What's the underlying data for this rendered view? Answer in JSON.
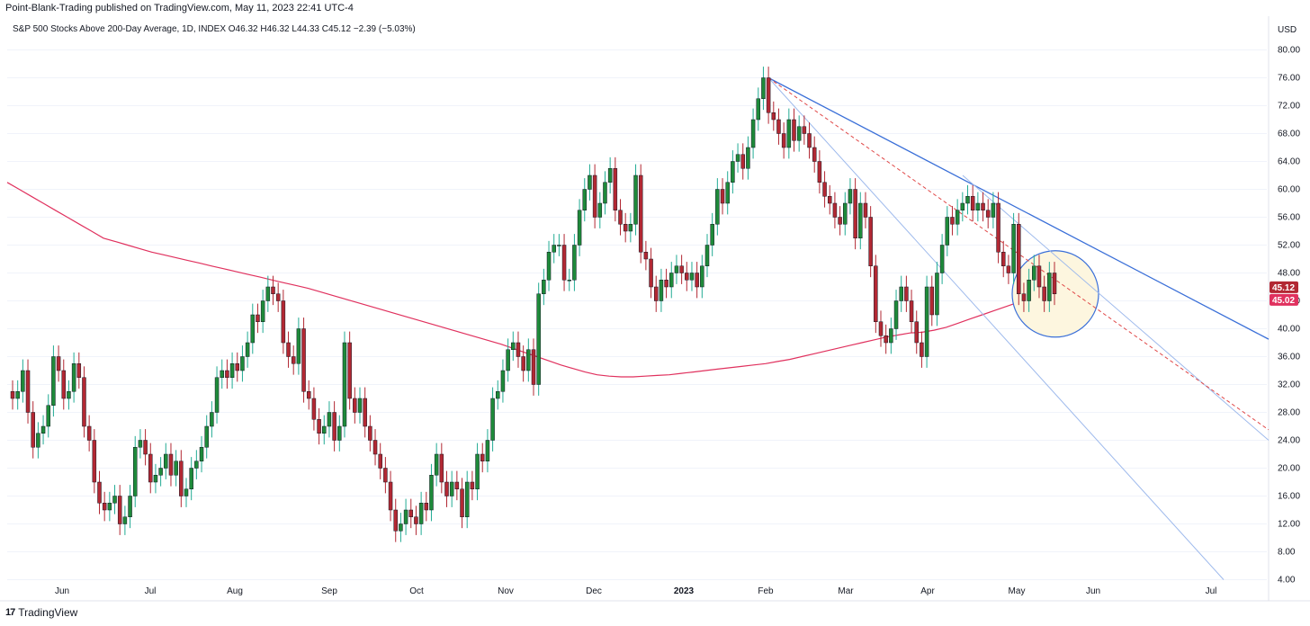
{
  "header": {
    "publish_line": "Point-Blank-Trading published on TradingView.com, May 11, 2023 22:41 UTC-4"
  },
  "legend": {
    "symbol": "S&P 500 Stocks Above 200-Day Average, 1D, INDEX",
    "open": "O46.32",
    "high": "H46.32",
    "low": "L44.33",
    "close": "C45.12",
    "change": "−2.39 (−5.03%)"
  },
  "footer": {
    "brand": "TradingView",
    "logo_glyph": "17"
  },
  "colors": {
    "up": "#22ab94",
    "up_body": "#2e7d32",
    "down": "#b22833",
    "ma": "#e0315e",
    "trend_blue": "#3a6fd8",
    "trend_light": "#9db9ec",
    "trend_red": "#e04848",
    "circle": "#3a6fd8",
    "circle_fill": "#fdf6df",
    "grid": "#f0f3fa",
    "text": "#131722"
  },
  "chart_data": {
    "type": "candlestick",
    "title": "S&P 500 Stocks Above 200-Day Average, 1D, INDEX",
    "currency": "USD",
    "ylim": [
      2,
      82
    ],
    "y_ticks": [
      "4.00",
      "8.00",
      "12.00",
      "16.00",
      "20.00",
      "24.00",
      "28.00",
      "32.00",
      "36.00",
      "40.00",
      "44.00",
      "48.00",
      "52.00",
      "56.00",
      "60.00",
      "64.00",
      "68.00",
      "72.00",
      "76.00",
      "80.00"
    ],
    "x_labels": [
      "Jun",
      "Jul",
      "Aug",
      "Sep",
      "Oct",
      "Nov",
      "Dec",
      "2023",
      "Feb",
      "Mar",
      "Apr",
      "May",
      "Jun",
      "Jul"
    ],
    "last_price_label": "45.12",
    "ma_value_label": "45.02",
    "closes": [
      30,
      31,
      34,
      28,
      23,
      25,
      26,
      29,
      36,
      34,
      30,
      31,
      35,
      33,
      26,
      24,
      18,
      15,
      14,
      15,
      16,
      12,
      13,
      16,
      23,
      24,
      22,
      18,
      19,
      20,
      22,
      19,
      21,
      16,
      17,
      20,
      21,
      23,
      26,
      28,
      33,
      34,
      33,
      35,
      34,
      36,
      38,
      42,
      41,
      44,
      46,
      45,
      44,
      38,
      36,
      35,
      40,
      31,
      30,
      27,
      25,
      26,
      28,
      24,
      26,
      38,
      30,
      28,
      30,
      26,
      24,
      22,
      20,
      18,
      14,
      11,
      12,
      14,
      13,
      12,
      15,
      14,
      19,
      22,
      18,
      16,
      18,
      17,
      13,
      18,
      17,
      22,
      21,
      24,
      30,
      31,
      34,
      37,
      38,
      36,
      34,
      37,
      32,
      45,
      47,
      51,
      52,
      52,
      47,
      47,
      52,
      57,
      60,
      62,
      56,
      58,
      61,
      63,
      57,
      55,
      54,
      55,
      62,
      51,
      50,
      46,
      44,
      47,
      46,
      48,
      49,
      48,
      47,
      48,
      46,
      49,
      52,
      55,
      60,
      58,
      61,
      64,
      65,
      63,
      66,
      70,
      73,
      76,
      71,
      70,
      68,
      66,
      70,
      67,
      69,
      68,
      66,
      64,
      61,
      59,
      58,
      56,
      55,
      58,
      60,
      53,
      58,
      56,
      49,
      41,
      39,
      38,
      40,
      44,
      46,
      44,
      41,
      38,
      36,
      46,
      42,
      48,
      52,
      56,
      55,
      57,
      58,
      59,
      57,
      58,
      57,
      56,
      58,
      51,
      49,
      48,
      55,
      45,
      44,
      47,
      49,
      46,
      44,
      48,
      45
    ],
    "highs_offsets": 1.6,
    "ma_200": [
      61,
      60,
      59,
      58,
      57,
      56,
      55,
      54,
      53,
      52.5,
      52,
      51.5,
      51,
      50.6,
      50.2,
      49.8,
      49.4,
      49,
      48.6,
      48.2,
      47.8,
      47.4,
      47,
      46.6,
      46.2,
      45.8,
      45.3,
      44.8,
      44.3,
      43.8,
      43.3,
      42.8,
      42.3,
      41.8,
      41.3,
      40.8,
      40.3,
      39.8,
      39.3,
      38.8,
      38.3,
      37.8,
      37.2,
      36.6,
      36,
      35.4,
      34.8,
      34.3,
      33.8,
      33.4,
      33.2,
      33.1,
      33.1,
      33.2,
      33.3,
      33.4,
      33.6,
      33.8,
      34,
      34.2,
      34.4,
      34.6,
      34.8,
      35,
      35.3,
      35.6,
      36,
      36.4,
      36.8,
      37.2,
      37.6,
      38,
      38.4,
      38.8,
      39.1,
      39.4,
      39.5,
      39.8,
      40.2,
      40.8,
      41.4,
      42,
      42.6,
      43.2,
      43.8,
      44.3,
      44.8,
      45.02
    ],
    "annotations": [
      "descending resistance trendline from Feb high",
      "dashed red trendline",
      "circle highlighting May test of 200-day MA"
    ]
  }
}
